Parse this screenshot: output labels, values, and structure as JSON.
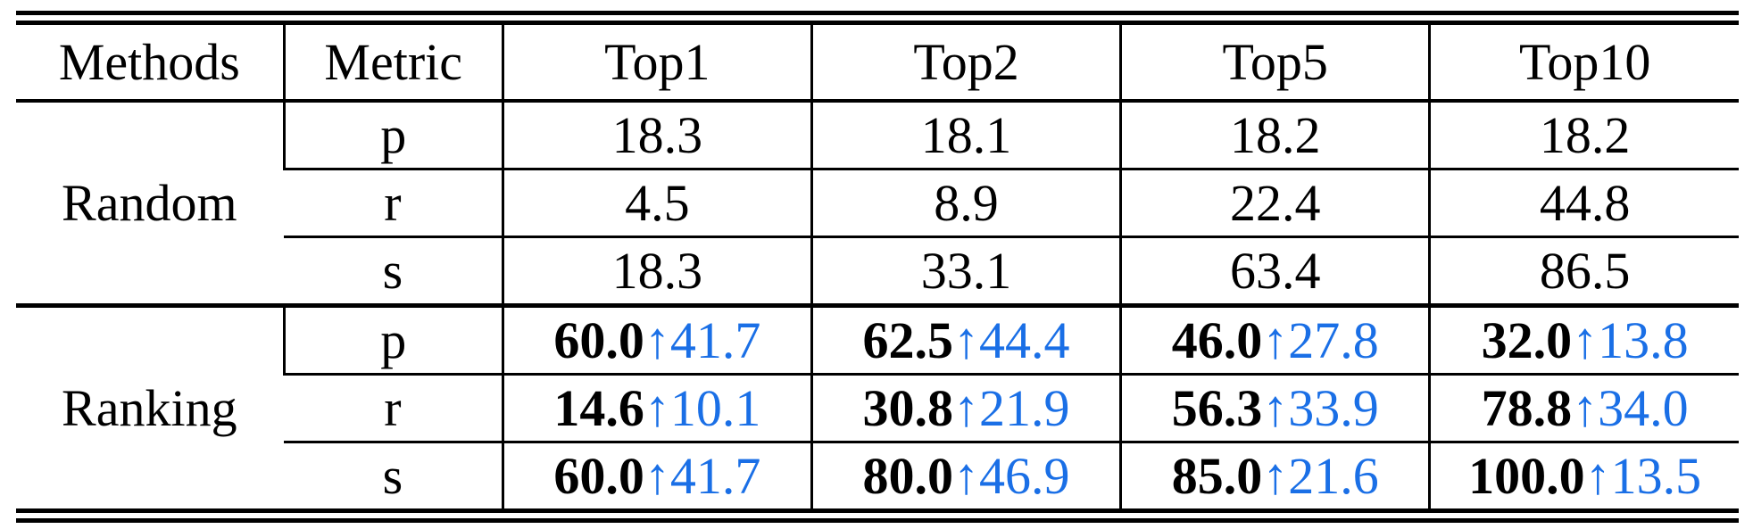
{
  "table": {
    "headers": [
      "Methods",
      "Metric",
      "Top1",
      "Top2",
      "Top5",
      "Top10"
    ],
    "arrow_glyph": "↑",
    "gain_color": "#1a6fe6",
    "random": {
      "method": "Random",
      "rows": [
        {
          "metric": "p",
          "values": [
            "18.3",
            "18.1",
            "18.2",
            "18.2"
          ]
        },
        {
          "metric": "r",
          "values": [
            "4.5",
            "8.9",
            "22.4",
            "44.8"
          ]
        },
        {
          "metric": "s",
          "values": [
            "18.3",
            "33.1",
            "63.4",
            "86.5"
          ]
        }
      ]
    },
    "ranking": {
      "method": "Ranking",
      "rows": [
        {
          "metric": "p",
          "cells": [
            {
              "value": "60.0",
              "gain": "41.7"
            },
            {
              "value": "62.5",
              "gain": "44.4"
            },
            {
              "value": "46.0",
              "gain": "27.8"
            },
            {
              "value": "32.0",
              "gain": "13.8"
            }
          ]
        },
        {
          "metric": "r",
          "cells": [
            {
              "value": "14.6",
              "gain": "10.1"
            },
            {
              "value": "30.8",
              "gain": "21.9"
            },
            {
              "value": "56.3",
              "gain": "33.9"
            },
            {
              "value": "78.8",
              "gain": "34.0"
            }
          ]
        },
        {
          "metric": "s",
          "cells": [
            {
              "value": "60.0",
              "gain": "41.7"
            },
            {
              "value": "80.0",
              "gain": "46.9"
            },
            {
              "value": "85.0",
              "gain": "21.6"
            },
            {
              "value": "100.0",
              "gain": "13.5"
            }
          ]
        }
      ]
    }
  }
}
